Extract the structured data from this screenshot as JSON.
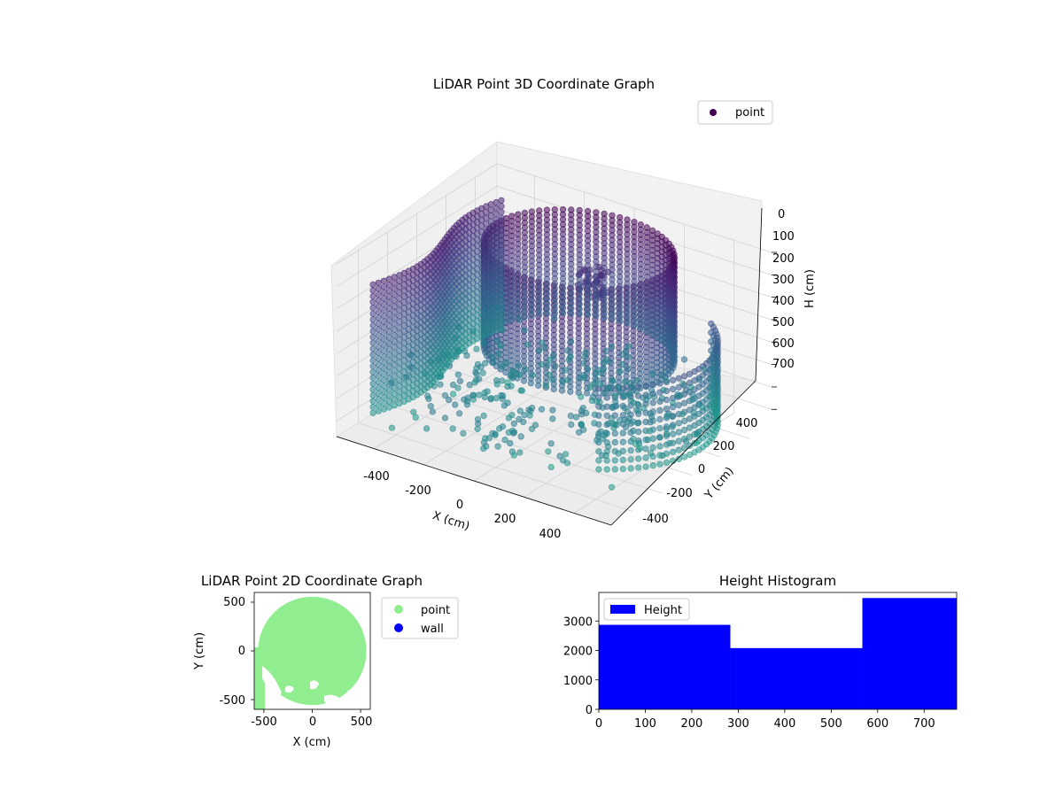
{
  "chart_data": [
    {
      "type": "scatter",
      "title": "LiDAR Point 3D Coordinate Graph",
      "xlabel": "X (cm)",
      "ylabel": "Y (cm)",
      "zlabel": "H (cm)",
      "xticks": [
        -400,
        -200,
        0,
        200,
        400
      ],
      "yticks": [
        -400,
        -200,
        0,
        200,
        400
      ],
      "zticks": [
        0,
        100,
        200,
        300,
        400,
        500,
        600,
        700
      ],
      "xlim": [
        -550,
        550
      ],
      "ylim": [
        -550,
        550
      ],
      "zlim": [
        0,
        770
      ],
      "z_inverted": true,
      "colormap": "viridis",
      "legend": {
        "position": "top-right",
        "entries": [
          {
            "label": "point",
            "color": "#440154"
          }
        ]
      },
      "structure": {
        "ring_center": [
          30,
          120
        ],
        "ring_radius": 330,
        "ring_top_height": 0,
        "ring_bottom_height": 480,
        "left_wall_x": -480,
        "floor_height": 620
      }
    },
    {
      "type": "scatter",
      "title": "LiDAR Point 2D Coordinate Graph",
      "xlabel": "X (cm)",
      "ylabel": "Y (cm)",
      "xticks": [
        -500,
        0,
        500
      ],
      "yticks": [
        500,
        0,
        -500
      ],
      "xlim": [
        -600,
        600
      ],
      "ylim": [
        -600,
        600
      ],
      "disk_center": [
        0,
        0
      ],
      "disk_radius": 560,
      "legend": {
        "position": "outside-right",
        "entries": [
          {
            "label": "point",
            "color": "#90ee90"
          },
          {
            "label": "wall",
            "color": "#0000ff"
          }
        ]
      }
    },
    {
      "type": "bar",
      "title": "Height Histogram",
      "xlabel": "",
      "ylabel": "",
      "bins": [
        {
          "from": 0,
          "to": 283,
          "count": 2870
        },
        {
          "from": 283,
          "to": 567,
          "count": 2080
        },
        {
          "from": 567,
          "to": 770,
          "count": 3780
        }
      ],
      "xticks": [
        0,
        100,
        200,
        300,
        400,
        500,
        600,
        700
      ],
      "yticks": [
        0,
        1000,
        2000,
        3000
      ],
      "xlim": [
        0,
        770
      ],
      "ylim": [
        0,
        3970
      ],
      "color": "#0000ff",
      "legend": {
        "position": "top-left",
        "entries": [
          {
            "label": "Height",
            "color": "#0000ff"
          }
        ]
      }
    }
  ]
}
